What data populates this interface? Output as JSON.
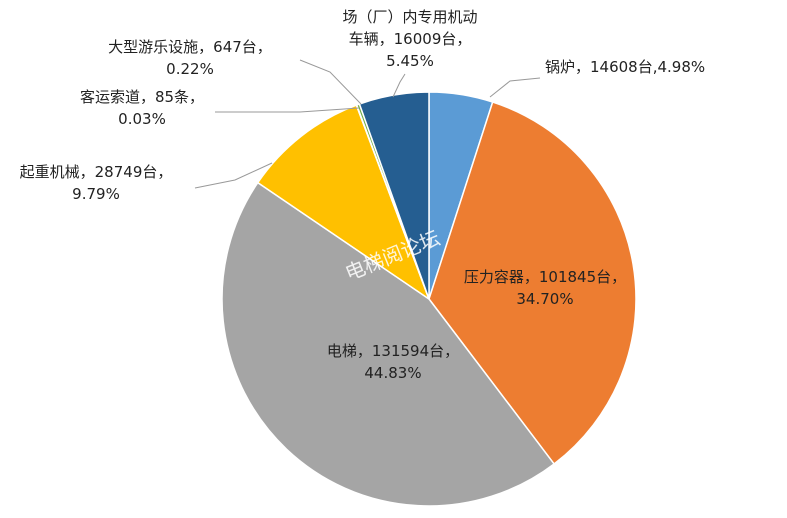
{
  "chart_data": {
    "type": "pie",
    "slices": [
      {
        "label_lines": [
          "锅炉，14608台,4.98%"
        ],
        "value": 14608,
        "percent": 4.98,
        "color": "#5B9BD5"
      },
      {
        "label_lines": [
          "压力容器，101845台，",
          "34.70%"
        ],
        "value": 101845,
        "percent": 34.7,
        "color": "#ED7D31"
      },
      {
        "label_lines": [
          "电梯，131594台，",
          "44.83%"
        ],
        "value": 131594,
        "percent": 44.83,
        "color": "#A5A5A5"
      },
      {
        "label_lines": [
          "起重机械，28749台，",
          "9.79%"
        ],
        "value": 28749,
        "percent": 9.79,
        "color": "#FFC000"
      },
      {
        "label_lines": [
          "客运索道，85条，",
          "0.03%"
        ],
        "value": 85,
        "percent": 0.03,
        "color": "#4472C4"
      },
      {
        "label_lines": [
          "大型游乐设施，647台，",
          "0.22%"
        ],
        "value": 647,
        "percent": 0.22,
        "color": "#70AD47"
      },
      {
        "label_lines": [
          "场（厂）内专用机动",
          "车辆，16009台，",
          "5.45%"
        ],
        "value": 16009,
        "percent": 5.45,
        "color": "#255E91"
      }
    ],
    "watermark": "电梯阅论坛"
  }
}
